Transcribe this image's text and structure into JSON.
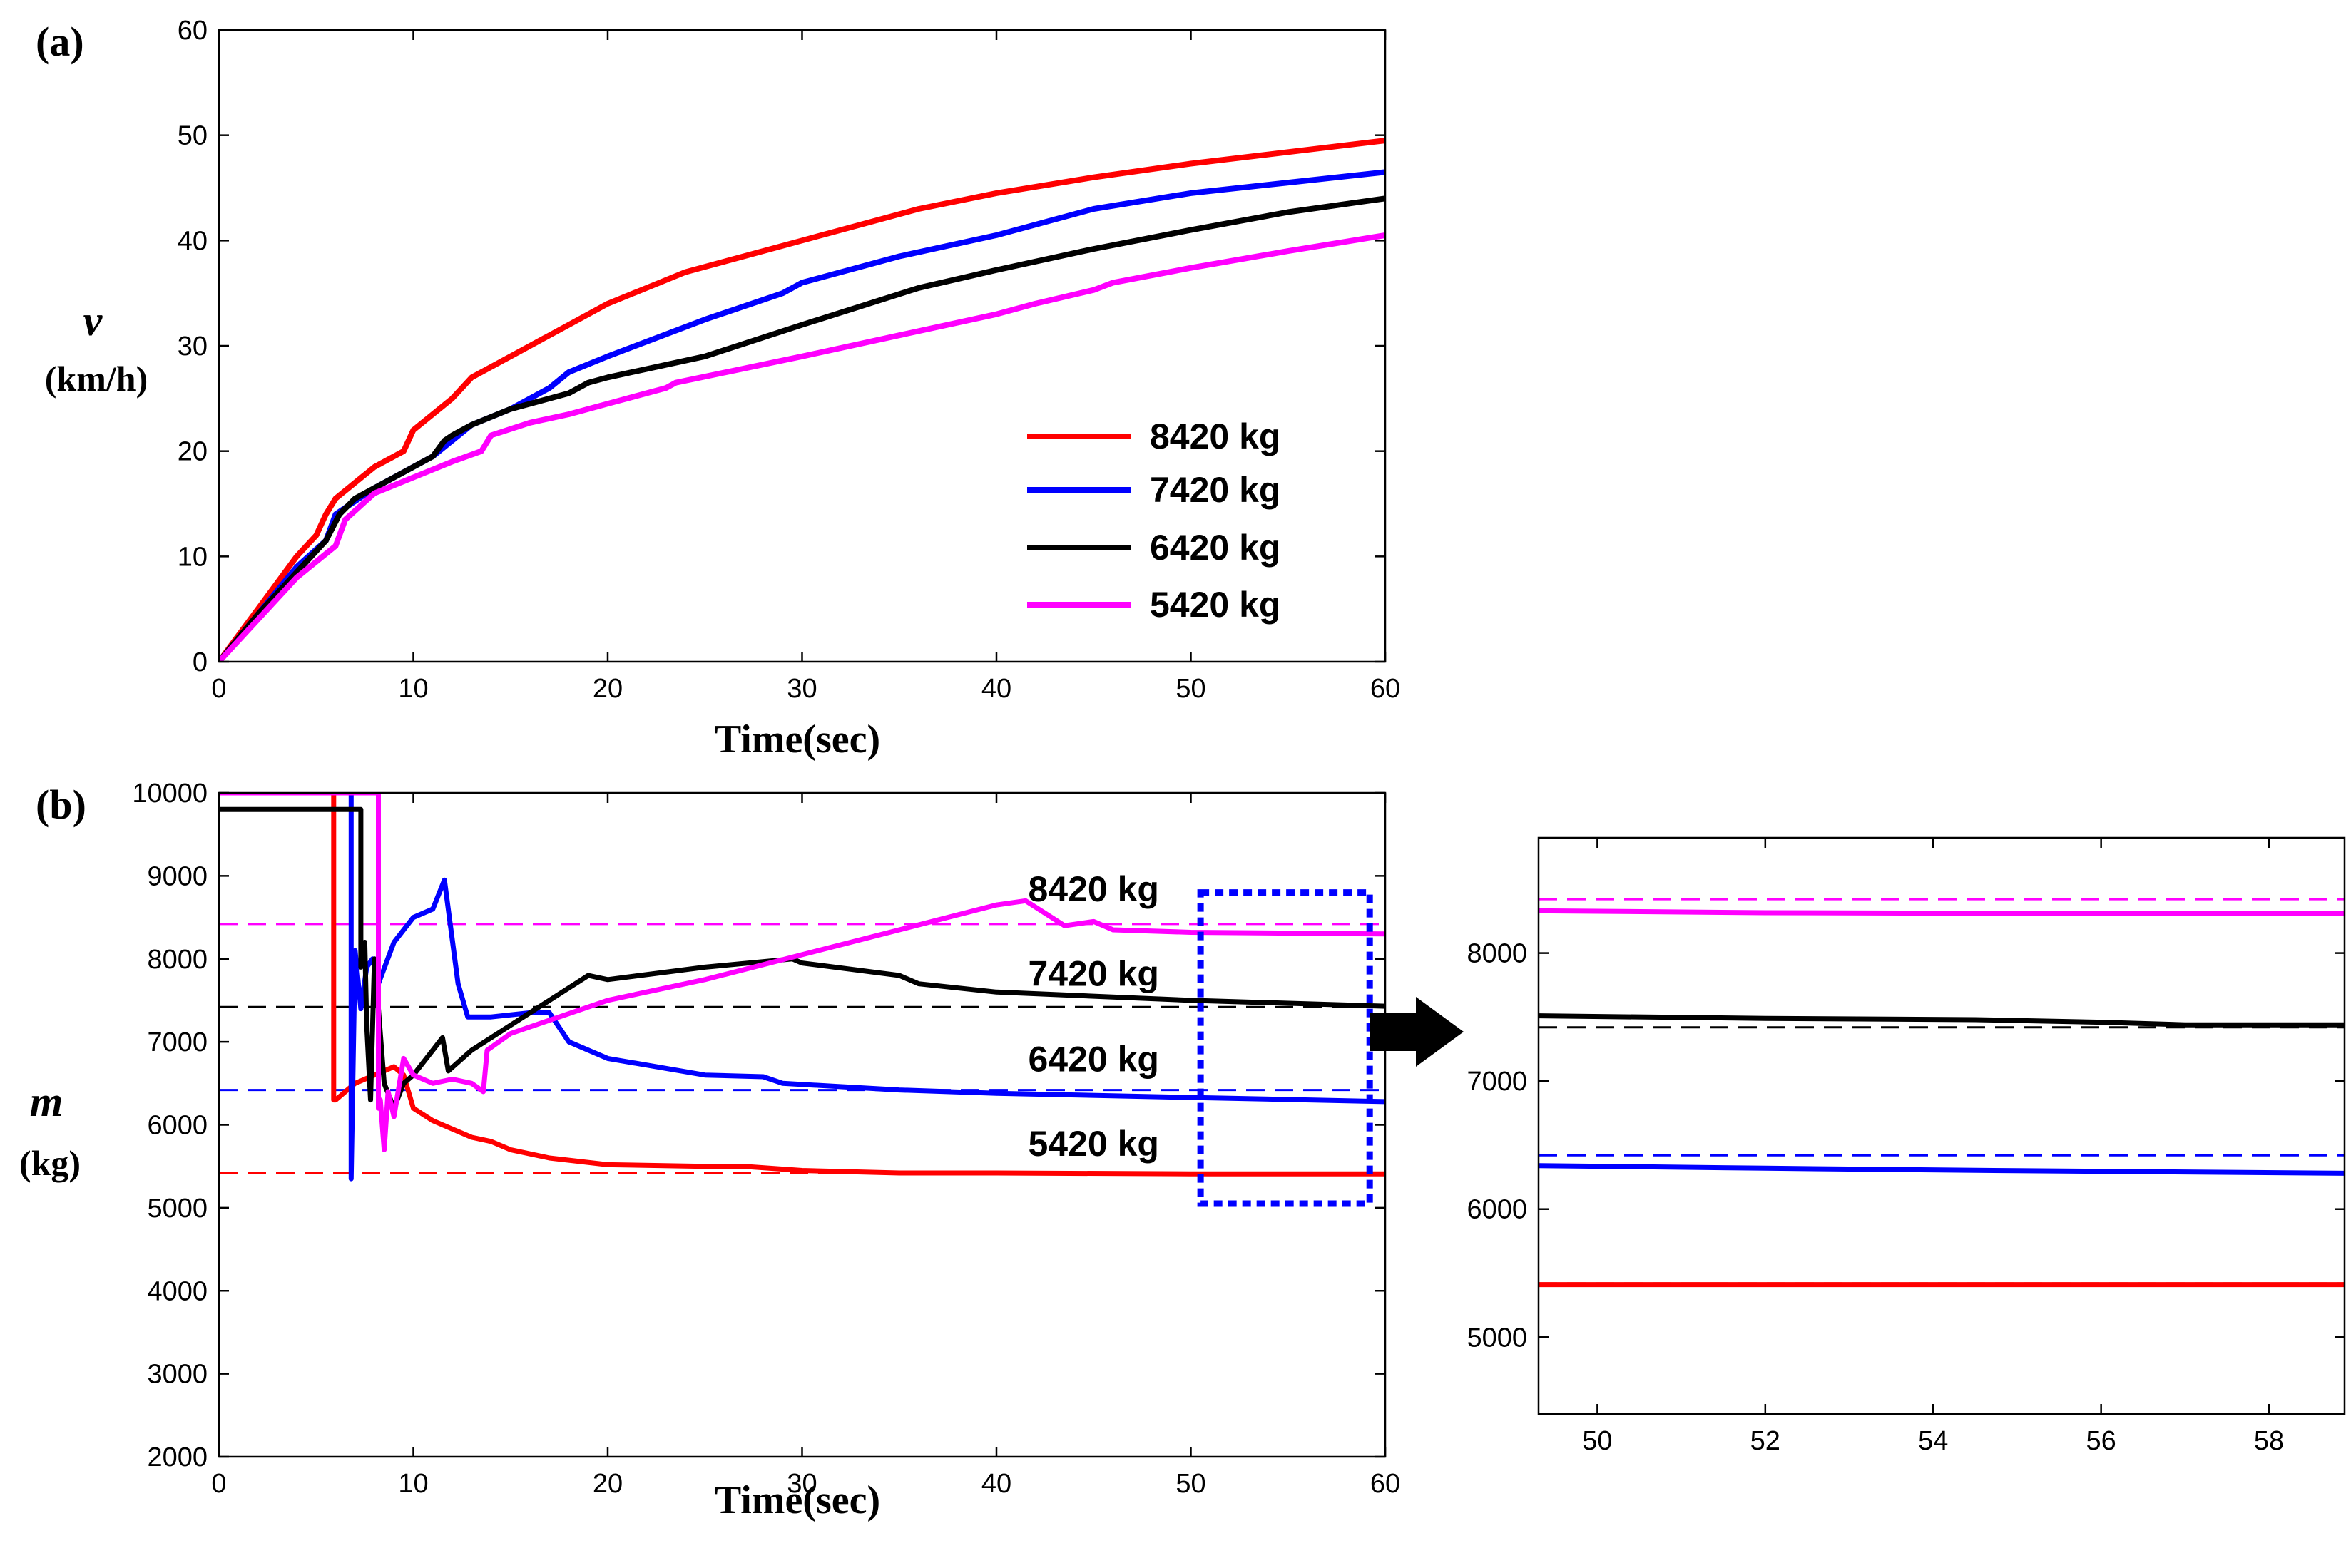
{
  "colors": {
    "red": "#ff0000",
    "blue": "#0000ff",
    "black": "#000000",
    "magenta": "#ff00ff",
    "highlight_box": "#0000ff",
    "arrow": "#000000"
  },
  "chart_data": [
    {
      "id": "a",
      "panel_label": "(a)",
      "type": "line",
      "xlabel": "Time(sec)",
      "ylabel_symbol": "v",
      "ylabel_unit": "(km/h)",
      "xlim": [
        0,
        60
      ],
      "ylim": [
        0,
        60
      ],
      "xticks": [
        0,
        10,
        20,
        30,
        40,
        50,
        60
      ],
      "yticks": [
        0,
        10,
        20,
        30,
        40,
        50,
        60
      ],
      "legend_placement": "lower-right",
      "series": [
        {
          "name": "8420 kg",
          "color": "red",
          "x": [
            0,
            2,
            4,
            5,
            5.5,
            6,
            8,
            9.5,
            10,
            12,
            13,
            15,
            18,
            20,
            22,
            24,
            30,
            36,
            40,
            45,
            50,
            55,
            60
          ],
          "y": [
            0,
            5,
            10,
            12,
            14,
            15.5,
            18.5,
            20,
            22,
            25,
            27,
            29,
            32,
            34,
            35.5,
            37,
            40,
            43,
            44.5,
            46,
            47.3,
            48.4,
            49.5
          ]
        },
        {
          "name": "7420 kg",
          "color": "blue",
          "x": [
            0,
            2,
            4,
            5.5,
            6,
            8,
            10,
            11,
            12,
            13,
            15,
            17,
            18,
            20,
            25,
            29,
            30,
            35,
            40,
            45,
            50,
            55,
            60
          ],
          "y": [
            0,
            4.5,
            9,
            11.5,
            14,
            16.5,
            18.5,
            19.5,
            21,
            22.5,
            24,
            26,
            27.5,
            29,
            32.5,
            35,
            36,
            38.5,
            40.5,
            43,
            44.5,
            45.5,
            46.5
          ]
        },
        {
          "name": "6420 kg",
          "color": "black",
          "x": [
            0,
            2,
            4,
            5.5,
            6.2,
            7,
            9,
            11,
            11.6,
            12,
            13,
            15,
            18,
            19,
            20,
            25,
            30,
            36,
            40,
            45,
            50,
            55,
            60
          ],
          "y": [
            0,
            4.5,
            8.5,
            11.5,
            14,
            15.5,
            17.5,
            19.5,
            21,
            21.5,
            22.5,
            24,
            25.5,
            26.5,
            27,
            29,
            32,
            35.5,
            37.2,
            39.2,
            41,
            42.7,
            44
          ]
        },
        {
          "name": "5420 kg",
          "color": "magenta",
          "x": [
            0,
            2,
            4,
            6,
            6.5,
            8,
            10,
            12,
            13.5,
            14,
            16,
            18,
            20,
            23,
            23.5,
            30,
            35,
            40,
            42,
            45,
            46,
            50,
            55,
            60
          ],
          "y": [
            0,
            4,
            8,
            11,
            13.5,
            16,
            17.5,
            19,
            20,
            21.5,
            22.7,
            23.5,
            24.5,
            26,
            26.5,
            29,
            31,
            33,
            34,
            35.3,
            36,
            37.4,
            39,
            40.5
          ]
        }
      ]
    },
    {
      "id": "b",
      "panel_label": "(b)",
      "type": "line",
      "xlabel": "Time(sec)",
      "ylabel_symbol": "m",
      "ylabel_unit": "(kg)",
      "xlim": [
        0,
        60
      ],
      "ylim": [
        2000,
        10000
      ],
      "xticks": [
        0,
        10,
        20,
        30,
        40,
        50,
        60
      ],
      "yticks": [
        2000,
        3000,
        4000,
        5000,
        6000,
        7000,
        8000,
        9000,
        10000
      ],
      "reference_lines": [
        {
          "y": 8420,
          "color": "magenta",
          "style": "dashed"
        },
        {
          "y": 7420,
          "color": "black",
          "style": "dashed"
        },
        {
          "y": 6420,
          "color": "blue",
          "style": "dashed"
        },
        {
          "y": 5420,
          "color": "red",
          "style": "dashed"
        }
      ],
      "annotations": [
        {
          "text": "8420 kg",
          "x": 45,
          "y": 8850
        },
        {
          "text": "7420 kg",
          "x": 45,
          "y": 7830
        },
        {
          "text": "6420 kg",
          "x": 45,
          "y": 6800
        },
        {
          "text": "5420 kg",
          "x": 45,
          "y": 5780
        }
      ],
      "highlight_box": {
        "x": [
          50.5,
          59.2
        ],
        "y": [
          5050,
          8800
        ]
      },
      "series": [
        {
          "color": "red",
          "x": [
            0,
            5.9,
            5.9,
            6.0,
            7,
            8,
            9,
            9.5,
            10,
            11,
            12,
            13,
            14,
            15,
            17,
            20,
            25,
            27,
            30,
            35,
            40,
            50,
            60
          ],
          "y": [
            10000,
            10000,
            6300,
            6300,
            6500,
            6600,
            6700,
            6600,
            6200,
            6050,
            5950,
            5850,
            5800,
            5700,
            5600,
            5520,
            5500,
            5500,
            5450,
            5420,
            5420,
            5410,
            5410
          ]
        },
        {
          "name": "7420",
          "color": "blue",
          "x": [
            0,
            6.8,
            6.8,
            7.0,
            7.3,
            7.6,
            7.9,
            8.2,
            9,
            10,
            11,
            11.6,
            12.3,
            12.8,
            14,
            16,
            17,
            18,
            20,
            25,
            28,
            29,
            35,
            40,
            50,
            60
          ],
          "y": [
            10000,
            10000,
            5350,
            8100,
            7400,
            7900,
            8000,
            7700,
            8200,
            8500,
            8600,
            8950,
            7700,
            7300,
            7300,
            7350,
            7350,
            7000,
            6800,
            6600,
            6580,
            6500,
            6420,
            6380,
            6330,
            6280
          ]
        },
        {
          "color": "black",
          "x": [
            0,
            7.3,
            7.3,
            7.5,
            7.6,
            7.8,
            8.0,
            8.2,
            8.5,
            9,
            9.5,
            10,
            11,
            11.5,
            11.8,
            13,
            15,
            17,
            19,
            20,
            25,
            29.5,
            30,
            35,
            36,
            40,
            50,
            60
          ],
          "y": [
            9800,
            9800,
            7900,
            8200,
            7200,
            6300,
            8000,
            7400,
            6500,
            6200,
            6500,
            6600,
            6900,
            7050,
            6650,
            6900,
            7200,
            7500,
            7800,
            7750,
            7900,
            8000,
            7950,
            7800,
            7700,
            7600,
            7500,
            7430
          ]
        },
        {
          "color": "magenta",
          "x": [
            0,
            8.2,
            8.2,
            8.3,
            8.5,
            8.7,
            9,
            9.5,
            10,
            11,
            12,
            13,
            13.6,
            13.8,
            15,
            20,
            25,
            30,
            35,
            40,
            41.5,
            42.5,
            43.5,
            45,
            46,
            50,
            60
          ],
          "y": [
            10000,
            10000,
            6200,
            6300,
            5700,
            6400,
            6100,
            6800,
            6600,
            6500,
            6550,
            6500,
            6400,
            6900,
            7100,
            7500,
            7750,
            8050,
            8350,
            8650,
            8700,
            8550,
            8400,
            8450,
            8350,
            8320,
            8300
          ]
        }
      ]
    },
    {
      "id": "b-zoom",
      "type": "line",
      "xlim": [
        49.3,
        58.9
      ],
      "ylim": [
        4400,
        8900
      ],
      "xticks": [
        50,
        52,
        54,
        56,
        58
      ],
      "yticks": [
        5000,
        6000,
        7000,
        8000
      ],
      "reference_lines": [
        {
          "y": 8420,
          "color": "magenta",
          "style": "dashed"
        },
        {
          "y": 7420,
          "color": "black",
          "style": "dashed"
        },
        {
          "y": 6420,
          "color": "blue",
          "style": "dashed"
        },
        {
          "y": 5420,
          "color": "red",
          "style": "dashed"
        }
      ],
      "series": [
        {
          "color": "magenta",
          "x": [
            49.3,
            52,
            55,
            58.9
          ],
          "y": [
            8330,
            8315,
            8310,
            8310
          ]
        },
        {
          "color": "black",
          "x": [
            49.3,
            52,
            54.5,
            56,
            57,
            58.9
          ],
          "y": [
            7510,
            7490,
            7480,
            7460,
            7440,
            7440
          ]
        },
        {
          "color": "blue",
          "x": [
            49.3,
            52,
            55,
            58.9
          ],
          "y": [
            6340,
            6320,
            6300,
            6280
          ]
        },
        {
          "color": "red",
          "x": [
            49.3,
            58.9
          ],
          "y": [
            5410,
            5410
          ]
        }
      ]
    }
  ]
}
